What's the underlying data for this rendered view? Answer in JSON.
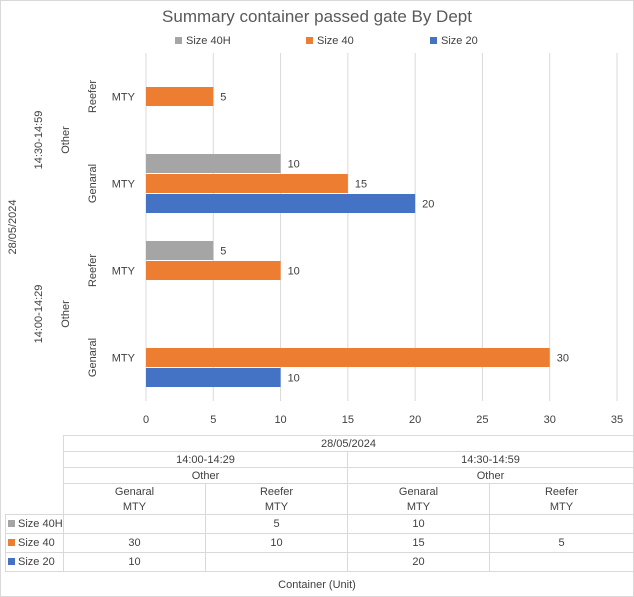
{
  "chart_data": {
    "type": "bar",
    "orientation": "horizontal",
    "title": "Summary container passed gate By Dept",
    "xlabel": "Container (Unit)",
    "xlim": [
      0,
      35
    ],
    "xticks": [
      "0",
      "5",
      "10",
      "15",
      "20",
      "25",
      "30",
      "35"
    ],
    "grid": true,
    "legend_position": "top",
    "date": "28/05/2024",
    "categories": [
      {
        "time": "14:30-14:59",
        "group": "Other",
        "dept": "Reefer",
        "type": "MTY"
      },
      {
        "time": "14:30-14:59",
        "group": "Other",
        "dept": "Genaral",
        "type": "MTY"
      },
      {
        "time": "14:00-14:29",
        "group": "Other",
        "dept": "Reefer",
        "type": "MTY"
      },
      {
        "time": "14:00-14:29",
        "group": "Other",
        "dept": "Genaral",
        "type": "MTY"
      }
    ],
    "series": [
      {
        "name": "Size 40H",
        "color": "#a5a5a5",
        "values": [
          null,
          10,
          5,
          null
        ]
      },
      {
        "name": "Size 40",
        "color": "#ed7d31",
        "values": [
          5,
          15,
          10,
          30
        ]
      },
      {
        "name": "Size 20",
        "color": "#4472c4",
        "values": [
          null,
          20,
          null,
          10
        ]
      }
    ],
    "data_table": {
      "date": "28/05/2024",
      "times": [
        "14:00-14:29",
        "14:30-14:59"
      ],
      "groups": [
        "Other",
        "Other"
      ],
      "depts": [
        "Genaral",
        "Reefer",
        "Genaral",
        "Reefer"
      ],
      "types": [
        "MTY",
        "MTY",
        "MTY",
        "MTY"
      ],
      "rows": [
        {
          "name": "Size 40H",
          "color": "#a5a5a5",
          "cells": [
            "",
            "5",
            "10",
            ""
          ]
        },
        {
          "name": "Size 40",
          "color": "#ed7d31",
          "cells": [
            "30",
            "10",
            "15",
            "5"
          ]
        },
        {
          "name": "Size 20",
          "color": "#4472c4",
          "cells": [
            "10",
            "",
            "20",
            ""
          ]
        }
      ]
    }
  }
}
